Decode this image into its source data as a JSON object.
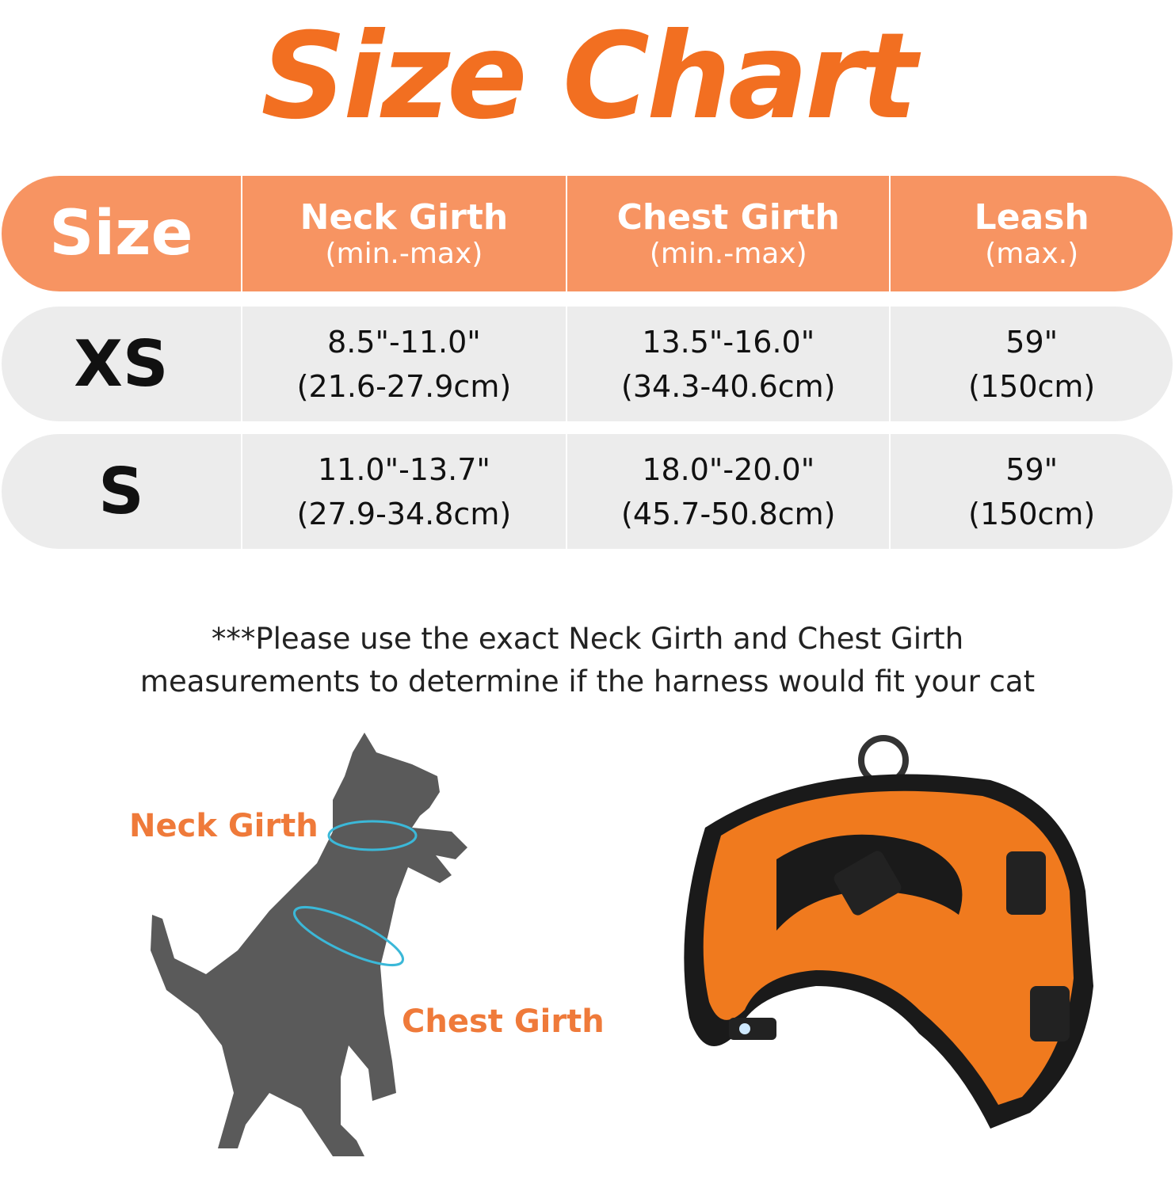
{
  "title": "Size Chart",
  "table": {
    "headers": [
      {
        "label": "Size",
        "sub": ""
      },
      {
        "label": "Neck Girth",
        "sub": "(min.-max)"
      },
      {
        "label": "Chest Girth",
        "sub": "(min.-max)"
      },
      {
        "label": "Leash",
        "sub": "(max.)"
      }
    ],
    "rows": [
      {
        "size": "XS",
        "neck": [
          "8.5\"-11.0\"",
          "(21.6-27.9cm)"
        ],
        "chest": [
          "13.5\"-16.0\"",
          "(34.3-40.6cm)"
        ],
        "leash": [
          "59\"",
          "(150cm)"
        ]
      },
      {
        "size": "S",
        "neck": [
          "11.0\"-13.7\"",
          "(27.9-34.8cm)"
        ],
        "chest": [
          "18.0\"-20.0\"",
          "(45.7-50.8cm)"
        ],
        "leash": [
          "59\"",
          "(150cm)"
        ]
      }
    ]
  },
  "note": [
    "***Please use the exact Neck Girth and Chest Girth",
    "measurements to determine if the harness would fit your cat"
  ],
  "diagram": {
    "neck_label": "Neck Girth",
    "chest_label": "Chest Girth"
  },
  "colors": {
    "title": "#f26f21",
    "header": "#f79462",
    "row": "#ececec",
    "harness": "#f07a1e",
    "measure": "#3bb8d8"
  }
}
